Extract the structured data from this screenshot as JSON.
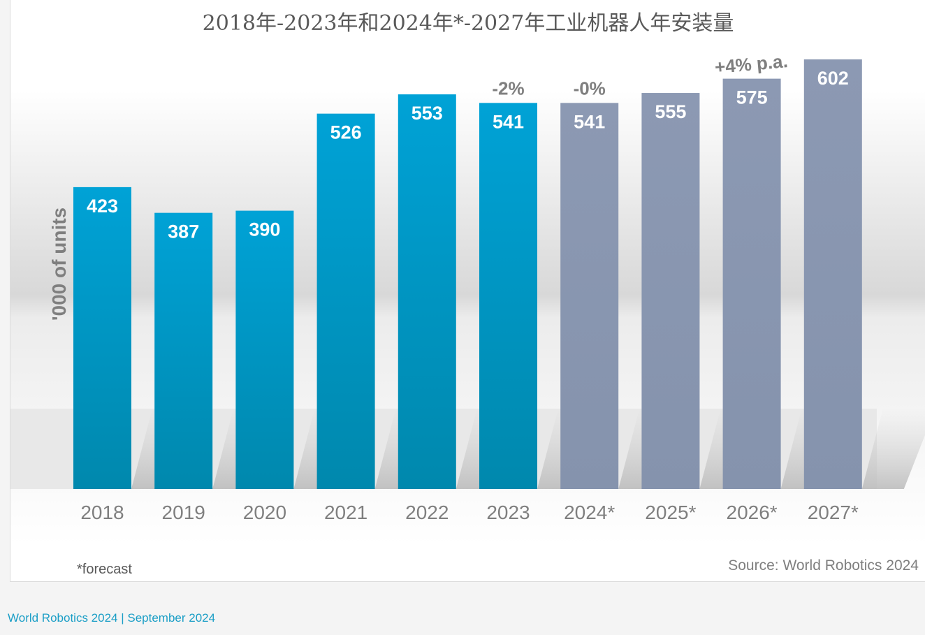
{
  "chart_data": {
    "type": "bar",
    "title": "2018年-2023年和2024年*-2027年工业机器人年安装量",
    "ylabel": "'000 of units",
    "categories": [
      "2018",
      "2019",
      "2020",
      "2021",
      "2022",
      "2023",
      "2024*",
      "2025*",
      "2026*",
      "2027*"
    ],
    "values": [
      423,
      387,
      390,
      526,
      553,
      541,
      541,
      555,
      575,
      602
    ],
    "series": [
      {
        "name": "",
        "categories": [
          "2018",
          "2019",
          "2020",
          "2021",
          "2022",
          "2023"
        ],
        "color": "#0099cc"
      },
      {
        "name": "",
        "categories": [
          "2024*",
          "2025*",
          "2026*",
          "2027*"
        ],
        "color": "#8a97b0"
      }
    ],
    "ylim": [
      0,
      650
    ],
    "grid": false,
    "annotations": [
      {
        "text": "-2%",
        "category": "2023"
      },
      {
        "text": "-0%",
        "category": "2024*"
      },
      {
        "text": "+4% p.a.",
        "category": "2026*",
        "rotate": -5
      }
    ]
  },
  "footnote": "*forecast",
  "source": "Source: World Robotics 2024",
  "footer": "World Robotics 2024  | September 2024",
  "colors": {
    "actual": "#0099cc",
    "forecast": "#8a97b0",
    "footer": "#1a9ec6"
  }
}
